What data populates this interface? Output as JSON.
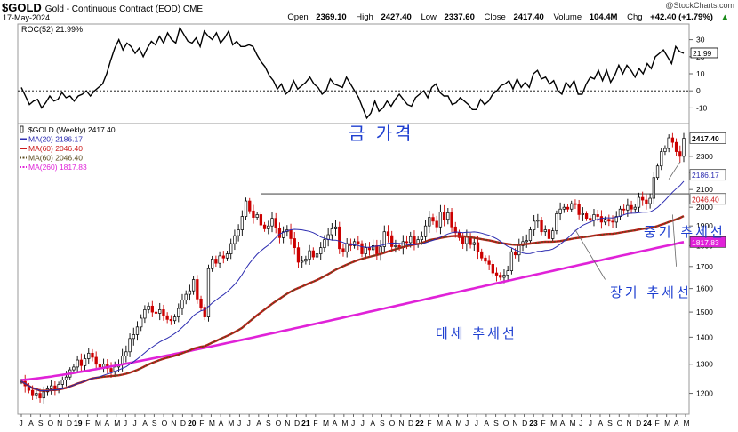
{
  "header": {
    "symbol": "$GOLD",
    "description": "Gold - Continuous Contract (EOD) CME",
    "date": "17-May-2024",
    "copyright": "@StockCharts.com",
    "open_label": "Open",
    "open": "2369.10",
    "high_label": "High",
    "high": "2427.40",
    "low_label": "Low",
    "low": "2337.60",
    "close_label": "Close",
    "close": "2417.40",
    "volume_label": "Volume",
    "volume": "104.4M",
    "chg_label": "Chg",
    "chg": "+42.40 (+1.79%)",
    "chg_arrow": "▲"
  },
  "annotations": {
    "gold_price": "금 가격",
    "mid_trend": "중기 추세선",
    "long_trend": "장기 추세선",
    "major_trend": "대세 추세선"
  },
  "colors": {
    "ma20": "#2b2bb0",
    "ma60_red": "#cc1a1a",
    "ma60_green": "#5a4a1e",
    "ma260": "#e022d8",
    "annotation": "#1e3fd0",
    "up_candle": "#000000",
    "down_candle": "#cc0000"
  },
  "chart_data": [
    {
      "type": "line",
      "title": "ROC(52) 21.99%",
      "series": [
        {
          "name": "ROC(52)",
          "values": [
            2,
            -3,
            -8,
            -6,
            -5,
            -10,
            -7,
            -3,
            -6,
            -5,
            -1,
            -4,
            -3,
            -6,
            -3,
            -2,
            0,
            -3,
            0,
            2,
            4,
            10,
            18,
            25,
            30,
            24,
            28,
            26,
            22,
            25,
            20,
            25,
            29,
            27,
            32,
            28,
            34,
            30,
            28,
            37,
            33,
            29,
            28,
            31,
            26,
            35,
            32,
            30,
            34,
            28,
            31,
            35,
            27,
            29,
            26,
            26,
            27,
            26,
            21,
            17,
            14,
            9,
            6,
            1,
            4,
            -2,
            0,
            6,
            1,
            3,
            5,
            8,
            4,
            2,
            -2,
            0,
            7,
            4,
            3,
            2,
            8,
            4,
            0,
            -4,
            -10,
            -16,
            -13,
            -6,
            -12,
            -10,
            -6,
            -9,
            -5,
            -2,
            -5,
            -8,
            -9,
            -4,
            -2,
            0,
            -4,
            2,
            4,
            -1,
            -3,
            -3,
            -8,
            -7,
            -4,
            -6,
            -8,
            -11,
            -11,
            -5,
            -8,
            -6,
            -2,
            0,
            3,
            4,
            6,
            1,
            7,
            2,
            5,
            2,
            10,
            12,
            7,
            8,
            4,
            6,
            0,
            -2,
            5,
            2,
            6,
            -2,
            -2,
            4,
            8,
            7,
            12,
            6,
            12,
            5,
            9,
            15,
            10,
            15,
            12,
            8,
            13,
            10,
            16,
            13,
            20,
            22,
            24,
            20,
            16,
            26,
            23,
            21.99
          ]
        }
      ],
      "ylim": [
        -15,
        35
      ],
      "yticks": [
        -10,
        0,
        10,
        20,
        30
      ],
      "last_value_label": "21.99"
    },
    {
      "type": "candlestick",
      "title": "$GOLD (Weekly) 2417.40",
      "xlabel": "",
      "ylabel": "",
      "y_scale": "log",
      "ylim": [
        1150,
        2480
      ],
      "yticks": [
        1200,
        1300,
        1400,
        1500,
        1600,
        1700,
        1800,
        1900,
        2000,
        2100,
        2200,
        2300
      ],
      "x_ticks": [
        "J",
        "A",
        "S",
        "O",
        "N",
        "D",
        "19",
        "F",
        "M",
        "A",
        "M",
        "J",
        "J",
        "A",
        "S",
        "O",
        "N",
        "D",
        "20",
        "F",
        "M",
        "A",
        "M",
        "J",
        "J",
        "A",
        "S",
        "O",
        "N",
        "D",
        "21",
        "F",
        "M",
        "A",
        "M",
        "J",
        "J",
        "A",
        "S",
        "O",
        "N",
        "D",
        "22",
        "F",
        "M",
        "A",
        "M",
        "J",
        "J",
        "A",
        "S",
        "O",
        "N",
        "D",
        "23",
        "F",
        "M",
        "A",
        "M",
        "J",
        "J",
        "A",
        "S",
        "O",
        "N",
        "D",
        "24",
        "F",
        "M",
        "A",
        "M"
      ],
      "x_ticks_bold": [
        "19",
        "20",
        "21",
        "22",
        "23",
        "24"
      ],
      "resistance_level": 2075,
      "close_series": [
        1240,
        1225,
        1210,
        1195,
        1200,
        1185,
        1205,
        1215,
        1225,
        1210,
        1230,
        1245,
        1255,
        1280,
        1290,
        1315,
        1295,
        1320,
        1340,
        1325,
        1300,
        1290,
        1300,
        1285,
        1275,
        1290,
        1300,
        1330,
        1345,
        1395,
        1410,
        1440,
        1475,
        1510,
        1525,
        1500,
        1495,
        1510,
        1485,
        1470,
        1465,
        1480,
        1515,
        1550,
        1575,
        1590,
        1640,
        1555,
        1520,
        1480,
        1690,
        1735,
        1715,
        1750,
        1740,
        1760,
        1810,
        1850,
        1880,
        1950,
        2035,
        1980,
        1945,
        1960,
        1905,
        1885,
        1900,
        1940,
        1890,
        1840,
        1870,
        1880,
        1835,
        1790,
        1720,
        1725,
        1735,
        1775,
        1745,
        1760,
        1790,
        1830,
        1855,
        1885,
        1895,
        1785,
        1770,
        1810,
        1800,
        1820,
        1810,
        1760,
        1790,
        1780,
        1800,
        1760,
        1795,
        1870,
        1850,
        1795,
        1800,
        1790,
        1820,
        1815,
        1845,
        1810,
        1830,
        1845,
        1900,
        1945,
        1925,
        1895,
        1975,
        1935,
        1970,
        1895,
        1865,
        1840,
        1810,
        1845,
        1805,
        1815,
        1770,
        1740,
        1725,
        1710,
        1670,
        1660,
        1650,
        1660,
        1680,
        1770,
        1755,
        1800,
        1820,
        1825,
        1880,
        1925,
        1930,
        1870,
        1880,
        1835,
        1875,
        1965,
        1990,
        2000,
        1990,
        2020,
        2015,
        1960,
        1965,
        1940,
        1930,
        1960,
        1950,
        1920,
        1935,
        1925,
        1920,
        1950,
        1990,
        1985,
        2010,
        1990,
        2000,
        2055,
        2040,
        2020,
        2050,
        2170,
        2240,
        2330,
        2350,
        2420,
        2390,
        2330,
        2300,
        2417.4
      ],
      "series": [
        {
          "name": "MA(20) 2186.17",
          "last": 2186.17,
          "color": "#2b2bb0"
        },
        {
          "name": "MA(60) 2046.40",
          "last": 2046.4,
          "color": "#cc1a1a"
        },
        {
          "name": "MA(60) 2046.40",
          "last": 2046.4,
          "color": "#5a4a1e",
          "dotted": true
        },
        {
          "name": "MA(260) 1817.83",
          "last": 1817.83,
          "color": "#e022d8"
        }
      ],
      "right_labels": [
        "2417.40",
        "2186.17",
        "2046.40",
        "1817.83"
      ]
    }
  ]
}
